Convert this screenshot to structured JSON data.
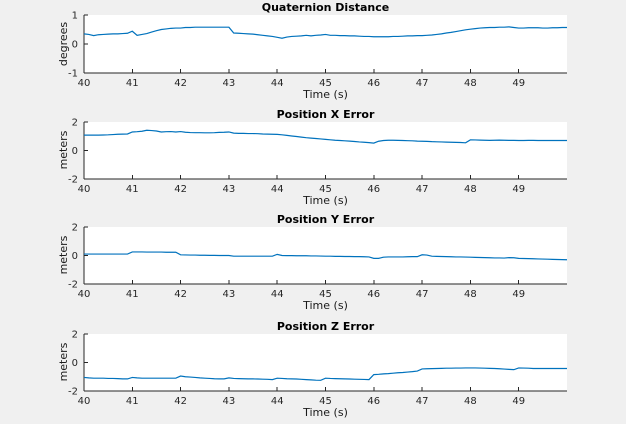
{
  "figure": {
    "background": "#f0f0f0",
    "plot_background": "#ffffff",
    "axis_color": "#262626",
    "tick_text_color": "#262626",
    "line_color": "#0072BD"
  },
  "chart_data": [
    {
      "type": "line",
      "title": "Quaternion Distance",
      "xlabel": "Time (s)",
      "ylabel": "degrees",
      "xlim": [
        40,
        50
      ],
      "ylim": [
        -1,
        1
      ],
      "xticks": [
        40,
        41,
        42,
        43,
        44,
        45,
        46,
        47,
        48,
        49
      ],
      "yticks": [
        -1,
        0,
        1
      ],
      "grid": false,
      "legend": "none",
      "line_color": "#0072BD",
      "x_start": 40,
      "x_step": 0.1,
      "y": [
        0.35,
        0.33,
        0.29,
        0.32,
        0.33,
        0.34,
        0.35,
        0.35,
        0.36,
        0.37,
        0.44,
        0.3,
        0.33,
        0.36,
        0.41,
        0.46,
        0.5,
        0.52,
        0.54,
        0.55,
        0.55,
        0.57,
        0.57,
        0.58,
        0.58,
        0.58,
        0.58,
        0.58,
        0.58,
        0.58,
        0.58,
        0.38,
        0.37,
        0.36,
        0.35,
        0.34,
        0.32,
        0.3,
        0.28,
        0.26,
        0.23,
        0.2,
        0.24,
        0.26,
        0.27,
        0.28,
        0.3,
        0.28,
        0.3,
        0.31,
        0.33,
        0.3,
        0.3,
        0.29,
        0.29,
        0.28,
        0.28,
        0.27,
        0.26,
        0.26,
        0.25,
        0.25,
        0.25,
        0.25,
        0.26,
        0.26,
        0.27,
        0.28,
        0.28,
        0.29,
        0.29,
        0.3,
        0.31,
        0.33,
        0.35,
        0.38,
        0.4,
        0.43,
        0.46,
        0.49,
        0.51,
        0.53,
        0.55,
        0.56,
        0.57,
        0.57,
        0.58,
        0.58,
        0.59,
        0.57,
        0.55,
        0.55,
        0.56,
        0.56,
        0.56,
        0.55,
        0.55,
        0.56,
        0.56,
        0.57,
        0.57
      ]
    },
    {
      "type": "line",
      "title": "Position X Error",
      "xlabel": "Time (s)",
      "ylabel": "meters",
      "xlim": [
        40,
        50
      ],
      "ylim": [
        -2,
        2
      ],
      "xticks": [
        40,
        41,
        42,
        43,
        44,
        45,
        46,
        47,
        48,
        49
      ],
      "yticks": [
        -2,
        0,
        2
      ],
      "grid": false,
      "legend": "none",
      "line_color": "#0072BD",
      "x_start": 40,
      "x_step": 0.1,
      "y": [
        1.08,
        1.08,
        1.08,
        1.08,
        1.09,
        1.1,
        1.12,
        1.14,
        1.15,
        1.16,
        1.3,
        1.32,
        1.35,
        1.42,
        1.4,
        1.37,
        1.3,
        1.32,
        1.33,
        1.3,
        1.33,
        1.28,
        1.26,
        1.25,
        1.25,
        1.24,
        1.24,
        1.25,
        1.27,
        1.28,
        1.3,
        1.22,
        1.2,
        1.2,
        1.19,
        1.19,
        1.18,
        1.16,
        1.15,
        1.14,
        1.13,
        1.1,
        1.06,
        1.02,
        0.98,
        0.94,
        0.9,
        0.87,
        0.84,
        0.81,
        0.78,
        0.75,
        0.72,
        0.7,
        0.68,
        0.66,
        0.63,
        0.6,
        0.58,
        0.55,
        0.52,
        0.65,
        0.7,
        0.72,
        0.72,
        0.71,
        0.7,
        0.69,
        0.68,
        0.66,
        0.65,
        0.64,
        0.62,
        0.61,
        0.6,
        0.59,
        0.58,
        0.57,
        0.56,
        0.54,
        0.75,
        0.74,
        0.73,
        0.72,
        0.71,
        0.72,
        0.73,
        0.72,
        0.71,
        0.71,
        0.7,
        0.7,
        0.71,
        0.71,
        0.7,
        0.7,
        0.7,
        0.7,
        0.7,
        0.7,
        0.7
      ]
    },
    {
      "type": "line",
      "title": "Position Y Error",
      "xlabel": "Time (s)",
      "ylabel": "meters",
      "xlim": [
        40,
        50
      ],
      "ylim": [
        -2,
        2
      ],
      "xticks": [
        40,
        41,
        42,
        43,
        44,
        45,
        46,
        47,
        48,
        49
      ],
      "yticks": [
        -2,
        0,
        2
      ],
      "grid": false,
      "legend": "none",
      "line_color": "#0072BD",
      "x_start": 40,
      "x_step": 0.1,
      "y": [
        0.1,
        0.1,
        0.1,
        0.1,
        0.1,
        0.1,
        0.1,
        0.1,
        0.1,
        0.1,
        0.25,
        0.25,
        0.25,
        0.24,
        0.24,
        0.24,
        0.24,
        0.23,
        0.23,
        0.23,
        0.05,
        0.04,
        0.03,
        0.03,
        0.02,
        0.02,
        0.01,
        0.01,
        0.0,
        0.0,
        0.0,
        -0.05,
        -0.05,
        -0.05,
        -0.05,
        -0.05,
        -0.05,
        -0.05,
        -0.05,
        -0.05,
        0.08,
        0.0,
        -0.01,
        -0.01,
        -0.02,
        -0.02,
        -0.02,
        -0.03,
        -0.03,
        -0.04,
        -0.05,
        -0.05,
        -0.06,
        -0.06,
        -0.07,
        -0.07,
        -0.08,
        -0.08,
        -0.09,
        -0.1,
        -0.2,
        -0.2,
        -0.12,
        -0.1,
        -0.1,
        -0.1,
        -0.1,
        -0.09,
        -0.08,
        -0.08,
        0.05,
        0.03,
        -0.05,
        -0.06,
        -0.07,
        -0.08,
        -0.09,
        -0.1,
        -0.1,
        -0.11,
        -0.12,
        -0.13,
        -0.14,
        -0.15,
        -0.16,
        -0.17,
        -0.17,
        -0.18,
        -0.15,
        -0.16,
        -0.2,
        -0.21,
        -0.22,
        -0.23,
        -0.24,
        -0.25,
        -0.26,
        -0.27,
        -0.28,
        -0.29,
        -0.3
      ]
    },
    {
      "type": "line",
      "title": "Position Z Error",
      "xlabel": "Time (s)",
      "ylabel": "meters",
      "xlim": [
        40,
        50
      ],
      "ylim": [
        -2,
        2
      ],
      "xticks": [
        40,
        41,
        42,
        43,
        44,
        45,
        46,
        47,
        48,
        49
      ],
      "yticks": [
        -2,
        0,
        2
      ],
      "grid": false,
      "legend": "none",
      "line_color": "#0072BD",
      "x_start": 40,
      "x_step": 0.1,
      "y": [
        -1.05,
        -1.08,
        -1.1,
        -1.1,
        -1.1,
        -1.12,
        -1.12,
        -1.13,
        -1.15,
        -1.15,
        -1.05,
        -1.08,
        -1.1,
        -1.1,
        -1.1,
        -1.1,
        -1.1,
        -1.1,
        -1.1,
        -1.1,
        -0.95,
        -1.0,
        -1.02,
        -1.05,
        -1.08,
        -1.1,
        -1.12,
        -1.14,
        -1.15,
        -1.15,
        -1.08,
        -1.12,
        -1.13,
        -1.14,
        -1.15,
        -1.15,
        -1.16,
        -1.17,
        -1.18,
        -1.2,
        -1.1,
        -1.12,
        -1.14,
        -1.15,
        -1.16,
        -1.18,
        -1.2,
        -1.22,
        -1.24,
        -1.25,
        -1.1,
        -1.12,
        -1.13,
        -1.14,
        -1.15,
        -1.16,
        -1.17,
        -1.18,
        -1.19,
        -1.2,
        -0.85,
        -0.83,
        -0.8,
        -0.78,
        -0.75,
        -0.72,
        -0.7,
        -0.67,
        -0.64,
        -0.6,
        -0.45,
        -0.44,
        -0.43,
        -0.42,
        -0.41,
        -0.4,
        -0.4,
        -0.39,
        -0.39,
        -0.38,
        -0.38,
        -0.38,
        -0.39,
        -0.4,
        -0.41,
        -0.42,
        -0.44,
        -0.46,
        -0.48,
        -0.5,
        -0.38,
        -0.39,
        -0.4,
        -0.42,
        -0.42,
        -0.42,
        -0.42,
        -0.42,
        -0.42,
        -0.42,
        -0.42
      ]
    }
  ]
}
